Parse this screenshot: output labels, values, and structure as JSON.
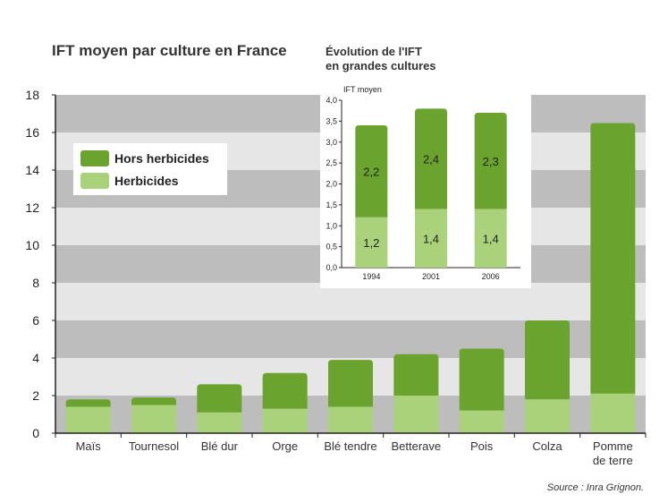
{
  "colors": {
    "band_dark": "#bdbdbd",
    "band_light": "#e6e6e6",
    "hors_herbicides": "#6aa42e",
    "herbicides": "#a9d27a",
    "axis": "#222222"
  },
  "chart_data": [
    {
      "type": "bar",
      "stacked": true,
      "title": "IFT moyen par culture en France",
      "categories": [
        "Maïs",
        "Tournesol",
        "Blé dur",
        "Orge",
        "Blé tendre",
        "Betterave",
        "Pois",
        "Colza",
        "Pomme de terre"
      ],
      "ylim": [
        0,
        18
      ],
      "yticks": [
        0,
        2,
        4,
        6,
        8,
        10,
        12,
        14,
        16,
        18
      ],
      "series": [
        {
          "name": "Herbicides",
          "values": [
            1.4,
            1.5,
            1.1,
            1.3,
            1.4,
            2.0,
            1.2,
            1.8,
            2.1
          ]
        },
        {
          "name": "Hors herbicides",
          "values": [
            0.4,
            0.4,
            1.5,
            1.9,
            2.5,
            2.2,
            3.3,
            4.2,
            14.4
          ]
        }
      ],
      "legend": {
        "position": "top-left",
        "items": [
          "Hors herbicides",
          "Herbicides"
        ]
      },
      "source": "Source : Inra Grignon."
    },
    {
      "type": "bar",
      "stacked": true,
      "title_lines": [
        "Évolution de l'IFT",
        "en grandes cultures"
      ],
      "ylabel": "IFT moyen",
      "categories": [
        "1994",
        "2001",
        "2006"
      ],
      "ylim": [
        0,
        4
      ],
      "yticks": [
        0,
        0.5,
        1,
        1.5,
        2,
        2.5,
        3,
        3.5,
        4
      ],
      "ytick_labels": [
        "0,0",
        "0,5",
        "1,0",
        "1,5",
        "2,0",
        "2,5",
        "3,0",
        "3,5",
        "4,0"
      ],
      "series": [
        {
          "name": "Herbicides",
          "values": [
            1.2,
            1.4,
            1.4
          ],
          "labels": [
            "1,2",
            "1,4",
            "1,4"
          ]
        },
        {
          "name": "Hors herbicides",
          "values": [
            2.2,
            2.4,
            2.3
          ],
          "labels": [
            "2,2",
            "2,4",
            "2,3"
          ]
        }
      ]
    }
  ]
}
